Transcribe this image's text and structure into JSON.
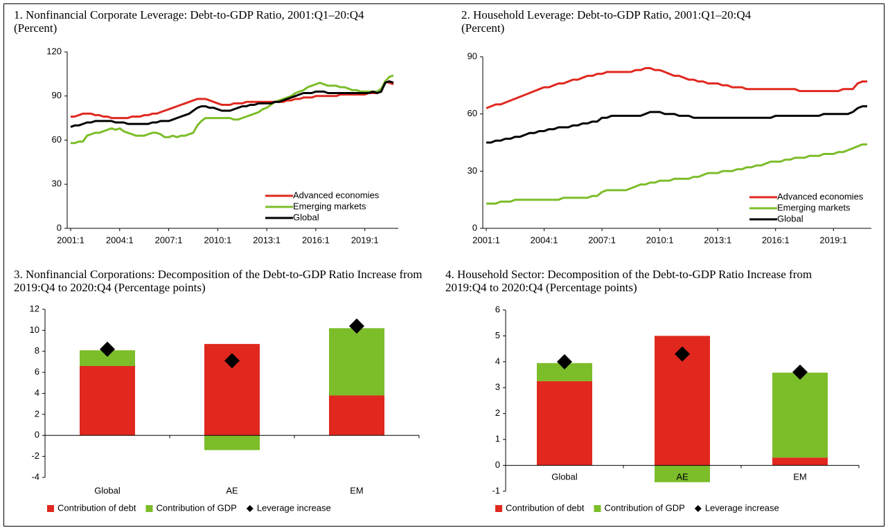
{
  "chart_data": [
    {
      "type": "line",
      "title": "1. Nonfinancial Corporate Leverage: Debt-to-GDP Ratio, 2001:Q1–20:Q4",
      "subtitle": "(Percent)",
      "categories": [
        "2001:1",
        null,
        null,
        null,
        null,
        null,
        null,
        null,
        null,
        null,
        null,
        null,
        "2004:1",
        null,
        null,
        null,
        null,
        null,
        null,
        null,
        null,
        null,
        null,
        null,
        "2007:1",
        null,
        null,
        null,
        null,
        null,
        null,
        null,
        null,
        null,
        null,
        null,
        "2010:1",
        null,
        null,
        null,
        null,
        null,
        null,
        null,
        null,
        null,
        null,
        null,
        "2013:1",
        null,
        null,
        null,
        null,
        null,
        null,
        null,
        null,
        null,
        null,
        null,
        "2016:1",
        null,
        null,
        null,
        null,
        null,
        null,
        null,
        null,
        null,
        null,
        null,
        "2019:1",
        null,
        null,
        null,
        null,
        null,
        null,
        null
      ],
      "ylim": [
        0,
        120
      ],
      "yticks": [
        0,
        30,
        60,
        90,
        120
      ],
      "legend": "lower right",
      "series": [
        {
          "name": "Advanced economies",
          "color": "#e0281e",
          "values": [
            76,
            76,
            77,
            78,
            78,
            78,
            77,
            77,
            76,
            76,
            75,
            75,
            75,
            75,
            75,
            76,
            76,
            76,
            77,
            77,
            78,
            78,
            79,
            80,
            81,
            82,
            83,
            84,
            85,
            86,
            87,
            88,
            88,
            88,
            87,
            86,
            85,
            84,
            84,
            84,
            85,
            85,
            85,
            86,
            86,
            86,
            86,
            86,
            86,
            86,
            86,
            86,
            86,
            87,
            87,
            88,
            88,
            89,
            89,
            89,
            90,
            90,
            90,
            90,
            90,
            90,
            91,
            91,
            91,
            91,
            91,
            91,
            91,
            92,
            92,
            92,
            93,
            100,
            99,
            98
          ]
        },
        {
          "name": "Emerging markets",
          "color": "#7cbd2a",
          "values": [
            58,
            58,
            59,
            59,
            63,
            64,
            65,
            65,
            66,
            67,
            68,
            67,
            68,
            66,
            65,
            64,
            63,
            63,
            63,
            64,
            65,
            65,
            64,
            62,
            62,
            63,
            62,
            63,
            63,
            64,
            65,
            70,
            73,
            75,
            75,
            75,
            75,
            75,
            75,
            75,
            74,
            74,
            75,
            76,
            77,
            78,
            79,
            81,
            82,
            84,
            86,
            87,
            88,
            89,
            90,
            92,
            93,
            94,
            96,
            97,
            98,
            99,
            98,
            97,
            97,
            97,
            96,
            96,
            95,
            94,
            94,
            93,
            93,
            93,
            93,
            93,
            95,
            100,
            103,
            104
          ]
        },
        {
          "name": "Global",
          "color": "#000000",
          "values": [
            69,
            70,
            70,
            71,
            72,
            72,
            73,
            73,
            73,
            73,
            73,
            72,
            72,
            72,
            71,
            71,
            71,
            71,
            71,
            71,
            72,
            72,
            73,
            73,
            73,
            74,
            75,
            76,
            77,
            78,
            80,
            82,
            83,
            83,
            82,
            82,
            81,
            80,
            80,
            80,
            81,
            82,
            83,
            83,
            84,
            84,
            85,
            85,
            85,
            85,
            86,
            86,
            87,
            88,
            89,
            90,
            91,
            92,
            92,
            92,
            93,
            93,
            93,
            92,
            92,
            92,
            92,
            92,
            92,
            92,
            92,
            92,
            92,
            92,
            93,
            92,
            93,
            99,
            100,
            99
          ]
        }
      ]
    },
    {
      "type": "line",
      "title": "2. Household Leverage: Debt-to-GDP Ratio, 2001:Q1–20:Q4",
      "subtitle": "(Percent)",
      "categories": [
        "2001:1",
        null,
        null,
        null,
        null,
        null,
        null,
        null,
        null,
        null,
        null,
        null,
        "2004:1",
        null,
        null,
        null,
        null,
        null,
        null,
        null,
        null,
        null,
        null,
        null,
        "2007:1",
        null,
        null,
        null,
        null,
        null,
        null,
        null,
        null,
        null,
        null,
        null,
        "2010:1",
        null,
        null,
        null,
        null,
        null,
        null,
        null,
        null,
        null,
        null,
        null,
        "2013:1",
        null,
        null,
        null,
        null,
        null,
        null,
        null,
        null,
        null,
        null,
        null,
        "2016:1",
        null,
        null,
        null,
        null,
        null,
        null,
        null,
        null,
        null,
        null,
        null,
        "2019:1",
        null,
        null,
        null,
        null,
        null,
        null,
        null
      ],
      "ylim": [
        0,
        90
      ],
      "yticks": [
        0,
        30,
        60,
        90
      ],
      "legend": "lower right",
      "series": [
        {
          "name": "Advanced economies",
          "color": "#e0281e",
          "values": [
            63,
            64,
            65,
            65,
            66,
            67,
            68,
            69,
            70,
            71,
            72,
            73,
            74,
            74,
            75,
            76,
            76,
            77,
            78,
            78,
            79,
            80,
            80,
            81,
            81,
            82,
            82,
            82,
            82,
            82,
            82,
            83,
            83,
            84,
            84,
            83,
            83,
            82,
            81,
            80,
            80,
            79,
            78,
            78,
            77,
            77,
            76,
            76,
            76,
            75,
            75,
            74,
            74,
            74,
            73,
            73,
            73,
            73,
            73,
            73,
            73,
            73,
            73,
            73,
            73,
            72,
            72,
            72,
            72,
            72,
            72,
            72,
            72,
            72,
            73,
            73,
            73,
            76,
            77,
            77
          ]
        },
        {
          "name": "Emerging markets",
          "color": "#7cbd2a",
          "values": [
            13,
            13,
            13,
            14,
            14,
            14,
            15,
            15,
            15,
            15,
            15,
            15,
            15,
            15,
            15,
            15,
            16,
            16,
            16,
            16,
            16,
            16,
            17,
            17,
            19,
            20,
            20,
            20,
            20,
            20,
            21,
            22,
            23,
            23,
            24,
            24,
            25,
            25,
            25,
            26,
            26,
            26,
            26,
            27,
            27,
            28,
            29,
            29,
            29,
            30,
            30,
            30,
            31,
            31,
            32,
            32,
            33,
            33,
            34,
            35,
            35,
            35,
            36,
            36,
            37,
            37,
            37,
            38,
            38,
            38,
            39,
            39,
            39,
            40,
            40,
            41,
            42,
            43,
            44,
            44
          ]
        },
        {
          "name": "Global",
          "color": "#000000",
          "values": [
            45,
            45,
            46,
            46,
            47,
            47,
            48,
            48,
            49,
            50,
            50,
            51,
            51,
            52,
            52,
            53,
            53,
            53,
            54,
            54,
            55,
            55,
            56,
            56,
            58,
            58,
            59,
            59,
            59,
            59,
            59,
            59,
            59,
            60,
            61,
            61,
            61,
            60,
            60,
            60,
            59,
            59,
            59,
            58,
            58,
            58,
            58,
            58,
            58,
            58,
            58,
            58,
            58,
            58,
            58,
            58,
            58,
            58,
            58,
            58,
            59,
            59,
            59,
            59,
            59,
            59,
            59,
            59,
            59,
            59,
            60,
            60,
            60,
            60,
            60,
            60,
            61,
            63,
            64,
            64
          ]
        }
      ]
    },
    {
      "type": "bar",
      "title": "3. Nonfinancial Corporations: Decomposition of the Debt-to-GDP Ratio Increase from 2019:Q4 to 2020:Q4 (Percentage points)",
      "categories": [
        "Global",
        "AE",
        "EM"
      ],
      "ylim": [
        -4,
        12
      ],
      "yticks": [
        -4,
        -2,
        0,
        2,
        4,
        6,
        8,
        10,
        12
      ],
      "legend": "bottom",
      "series": [
        {
          "name": "Contribution of debt",
          "type": "bar",
          "color": "#e0281e",
          "values": [
            6.6,
            8.7,
            3.8
          ]
        },
        {
          "name": "Contribution of GDP",
          "type": "bar",
          "color": "#7cbd2a",
          "values": [
            1.5,
            -1.4,
            6.4
          ]
        },
        {
          "name": "Leverage increase",
          "type": "marker",
          "color": "#000000",
          "values": [
            8.2,
            7.1,
            10.4
          ]
        }
      ]
    },
    {
      "type": "bar",
      "title": "4. Household Sector: Decomposition of the Debt-to-GDP Ratio Increase from 2019:Q4 to 2020:Q4 (Percentage points)",
      "categories": [
        "Global",
        "AE",
        "EM"
      ],
      "ylim": [
        -1,
        6
      ],
      "yticks": [
        -1,
        0,
        1,
        2,
        3,
        4,
        5,
        6
      ],
      "legend": "bottom",
      "series": [
        {
          "name": "Contribution of debt",
          "type": "bar",
          "color": "#e0281e",
          "values": [
            3.25,
            5.0,
            0.3
          ]
        },
        {
          "name": "Contribution of GDP",
          "type": "bar",
          "color": "#7cbd2a",
          "values": [
            0.7,
            -0.65,
            3.28
          ]
        },
        {
          "name": "Leverage increase",
          "type": "marker",
          "color": "#000000",
          "values": [
            4.0,
            4.3,
            3.6
          ]
        }
      ]
    }
  ]
}
